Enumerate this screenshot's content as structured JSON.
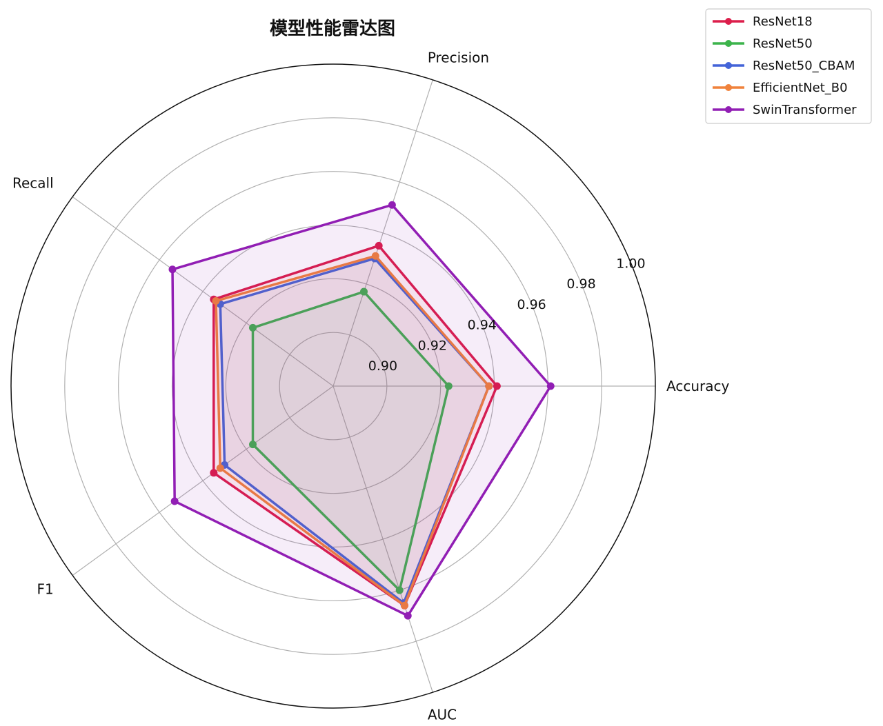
{
  "chart_data": {
    "type": "radar",
    "title": "模型性能雷达图",
    "axes": [
      "Accuracy",
      "Precision",
      "Recall",
      "F1",
      "AUC"
    ],
    "rlim": [
      0.88,
      1.0
    ],
    "r_ticks": [
      0.9,
      0.92,
      0.94,
      0.96,
      0.98,
      1.0
    ],
    "r_tick_labels": [
      "0.90",
      "0.92",
      "0.94",
      "0.96",
      "0.98",
      "1.00"
    ],
    "grid": true,
    "legend_position": "top-right",
    "series": [
      {
        "name": "ResNet18",
        "color": "#dc1e4b",
        "values": [
          0.941,
          0.935,
          0.935,
          0.935,
          0.966
        ]
      },
      {
        "name": "ResNet50",
        "color": "#3cb44b",
        "values": [
          0.923,
          0.917,
          0.917,
          0.917,
          0.96
        ]
      },
      {
        "name": "ResNet50_CBAM",
        "color": "#4364d8",
        "values": [
          0.938,
          0.93,
          0.932,
          0.93,
          0.965
        ]
      },
      {
        "name": "EfficientNet_B0",
        "color": "#f0823c",
        "values": [
          0.938,
          0.931,
          0.934,
          0.932,
          0.966
        ]
      },
      {
        "name": "SwinTransformer",
        "color": "#911eb4",
        "values": [
          0.961,
          0.951,
          0.954,
          0.953,
          0.97
        ],
        "fill": true
      }
    ]
  }
}
